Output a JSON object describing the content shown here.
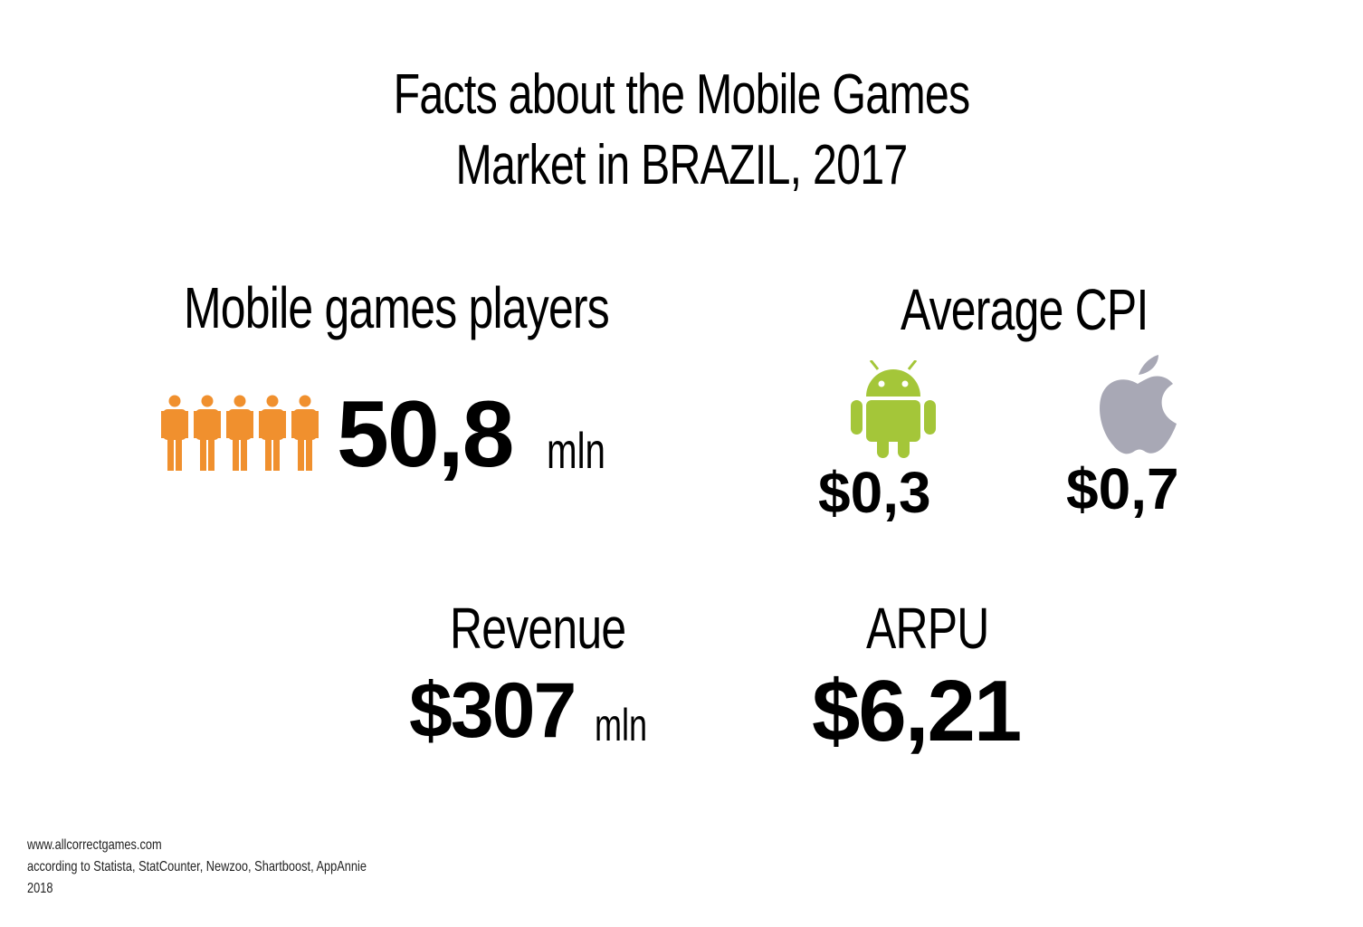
{
  "title": {
    "line1": "Facts about the Mobile Games",
    "line2": "Market in BRAZIL, 2017"
  },
  "players": {
    "heading": "Mobile games players",
    "value": "50,8",
    "unit": "mln",
    "icon": "person-icon",
    "icon_color": "#F0902E",
    "icon_count": 5
  },
  "cpi": {
    "heading": "Average CPI",
    "android": {
      "icon": "android-icon",
      "color": "#A4C639",
      "value": "$0,3"
    },
    "ios": {
      "icon": "apple-icon",
      "color": "#A8A8B5",
      "value": "$0,7"
    }
  },
  "revenue": {
    "heading": "Revenue",
    "value": "$307",
    "unit": "mln"
  },
  "arpu": {
    "heading": "ARPU",
    "value": "$6,21"
  },
  "footer": {
    "line1": "www.allcorrectgames.com",
    "line2": "according to Statista, StatCounter, Newzoo, Shartboost, AppAnnie",
    "line3": "2018"
  }
}
